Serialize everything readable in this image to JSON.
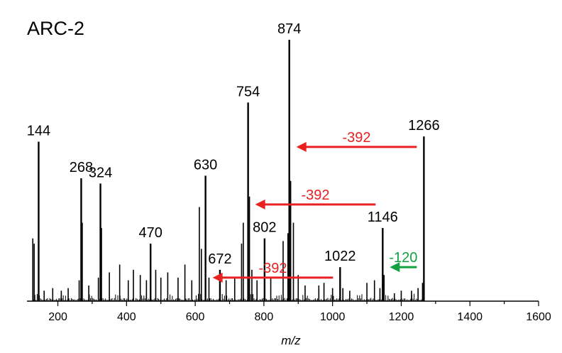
{
  "chart_data": {
    "type": "line",
    "title": "ARC-2",
    "xlabel": "m/z",
    "ylabel": "",
    "xlim": [
      110,
      1600
    ],
    "ylim": [
      0,
      100
    ],
    "x_ticks": [
      200,
      400,
      600,
      800,
      1000,
      1200,
      1400,
      1600
    ],
    "grid": false,
    "legend": "none",
    "peaks": [
      {
        "mz": 144,
        "intensity": 61,
        "label": "144"
      },
      {
        "mz": 268,
        "intensity": 47,
        "label": "268"
      },
      {
        "mz": 324,
        "intensity": 45,
        "label": "324"
      },
      {
        "mz": 470,
        "intensity": 22,
        "label": "470"
      },
      {
        "mz": 630,
        "intensity": 48,
        "label": "630"
      },
      {
        "mz": 672,
        "intensity": 12,
        "label": "672"
      },
      {
        "mz": 754,
        "intensity": 76,
        "label": "754"
      },
      {
        "mz": 802,
        "intensity": 24,
        "label": "802"
      },
      {
        "mz": 874,
        "intensity": 100,
        "label": "874"
      },
      {
        "mz": 1022,
        "intensity": 13,
        "label": "1022"
      },
      {
        "mz": 1146,
        "intensity": 28,
        "label": "1146"
      },
      {
        "mz": 1266,
        "intensity": 63,
        "label": "1266"
      }
    ],
    "minor_peaks": [
      {
        "mz": 127,
        "intensity": 24
      },
      {
        "mz": 131,
        "intensity": 22
      },
      {
        "mz": 160,
        "intensity": 4
      },
      {
        "mz": 185,
        "intensity": 5
      },
      {
        "mz": 210,
        "intensity": 4
      },
      {
        "mz": 230,
        "intensity": 5
      },
      {
        "mz": 262,
        "intensity": 8
      },
      {
        "mz": 271,
        "intensity": 30
      },
      {
        "mz": 290,
        "intensity": 6
      },
      {
        "mz": 318,
        "intensity": 9
      },
      {
        "mz": 327,
        "intensity": 28
      },
      {
        "mz": 350,
        "intensity": 11
      },
      {
        "mz": 380,
        "intensity": 14
      },
      {
        "mz": 405,
        "intensity": 8
      },
      {
        "mz": 420,
        "intensity": 12
      },
      {
        "mz": 440,
        "intensity": 10
      },
      {
        "mz": 458,
        "intensity": 8
      },
      {
        "mz": 485,
        "intensity": 12
      },
      {
        "mz": 500,
        "intensity": 9
      },
      {
        "mz": 520,
        "intensity": 11
      },
      {
        "mz": 550,
        "intensity": 9
      },
      {
        "mz": 570,
        "intensity": 14
      },
      {
        "mz": 590,
        "intensity": 8
      },
      {
        "mz": 612,
        "intensity": 36
      },
      {
        "mz": 618,
        "intensity": 20
      },
      {
        "mz": 640,
        "intensity": 9
      },
      {
        "mz": 690,
        "intensity": 8
      },
      {
        "mz": 715,
        "intensity": 9
      },
      {
        "mz": 735,
        "intensity": 22
      },
      {
        "mz": 740,
        "intensity": 30
      },
      {
        "mz": 758,
        "intensity": 40
      },
      {
        "mz": 765,
        "intensity": 12
      },
      {
        "mz": 780,
        "intensity": 8
      },
      {
        "mz": 820,
        "intensity": 9
      },
      {
        "mz": 856,
        "intensity": 23
      },
      {
        "mz": 870,
        "intensity": 26
      },
      {
        "mz": 878,
        "intensity": 46
      },
      {
        "mz": 886,
        "intensity": 30
      },
      {
        "mz": 900,
        "intensity": 10
      },
      {
        "mz": 920,
        "intensity": 6
      },
      {
        "mz": 960,
        "intensity": 6
      },
      {
        "mz": 975,
        "intensity": 7
      },
      {
        "mz": 1000,
        "intensity": 5
      },
      {
        "mz": 1030,
        "intensity": 5
      },
      {
        "mz": 1050,
        "intensity": 4
      },
      {
        "mz": 1100,
        "intensity": 7
      },
      {
        "mz": 1122,
        "intensity": 8
      },
      {
        "mz": 1138,
        "intensity": 5
      },
      {
        "mz": 1150,
        "intensity": 10
      },
      {
        "mz": 1180,
        "intensity": 3
      },
      {
        "mz": 1200,
        "intensity": 4
      },
      {
        "mz": 1230,
        "intensity": 4
      },
      {
        "mz": 1249,
        "intensity": 5
      },
      {
        "mz": 1262,
        "intensity": 7
      }
    ],
    "annotations": [
      {
        "label": "-392",
        "from_mz": 1266,
        "to_mz": 874,
        "level": 59,
        "color": "#e8201f"
      },
      {
        "label": "-392",
        "from_mz": 1146,
        "to_mz": 754,
        "level": 37,
        "color": "#e8201f"
      },
      {
        "label": "-392",
        "from_mz": 1022,
        "to_mz": 630,
        "level": 9,
        "color": "#e8201f"
      },
      {
        "label": "-120",
        "from_mz": 1266,
        "to_mz": 1146,
        "level": 13,
        "color": "#12a13f"
      }
    ]
  }
}
